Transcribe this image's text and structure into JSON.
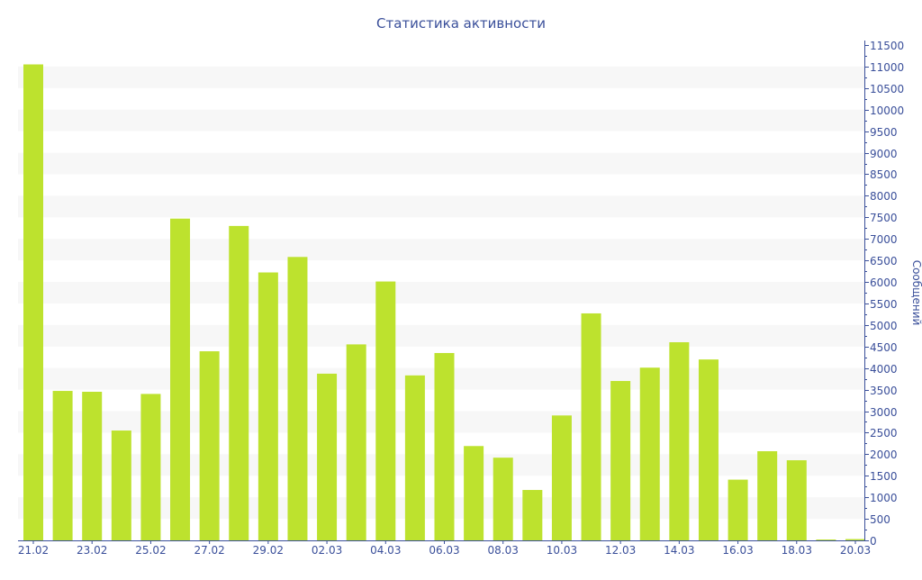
{
  "chart_data": {
    "type": "bar",
    "title": "Статистика активности",
    "xlabel": "",
    "ylabel": "Сообщений",
    "ylim": [
      0,
      11500
    ],
    "ytick_step": 500,
    "grid": "alternating horizontal bands",
    "y_axis_side": "right",
    "categories": [
      "21.02",
      "22.02",
      "23.02",
      "24.02",
      "25.02",
      "26.02",
      "27.02",
      "28.02",
      "29.02",
      "01.03",
      "02.03",
      "03.03",
      "04.03",
      "05.03",
      "06.03",
      "07.03",
      "08.03",
      "09.03",
      "10.03",
      "11.03",
      "12.03",
      "13.03",
      "14.03",
      "15.03",
      "16.03",
      "17.03",
      "18.03",
      "19.03",
      "20.03"
    ],
    "xtick_labels": [
      "21.02",
      "23.02",
      "25.02",
      "27.02",
      "29.02",
      "02.03",
      "04.03",
      "06.03",
      "08.03",
      "10.03",
      "12.03",
      "14.03",
      "16.03",
      "18.03",
      "20.03"
    ],
    "values": [
      11050,
      3470,
      3450,
      2550,
      3400,
      7470,
      4390,
      7300,
      6220,
      6580,
      3870,
      4550,
      6010,
      3830,
      4350,
      2190,
      1920,
      1170,
      2900,
      5270,
      3700,
      4010,
      4600,
      4200,
      1410,
      2070,
      1860,
      20,
      30
    ],
    "colors": {
      "bar": "#bde22e",
      "axis": "#3a4f9a",
      "band": "#f7f7f7"
    }
  }
}
